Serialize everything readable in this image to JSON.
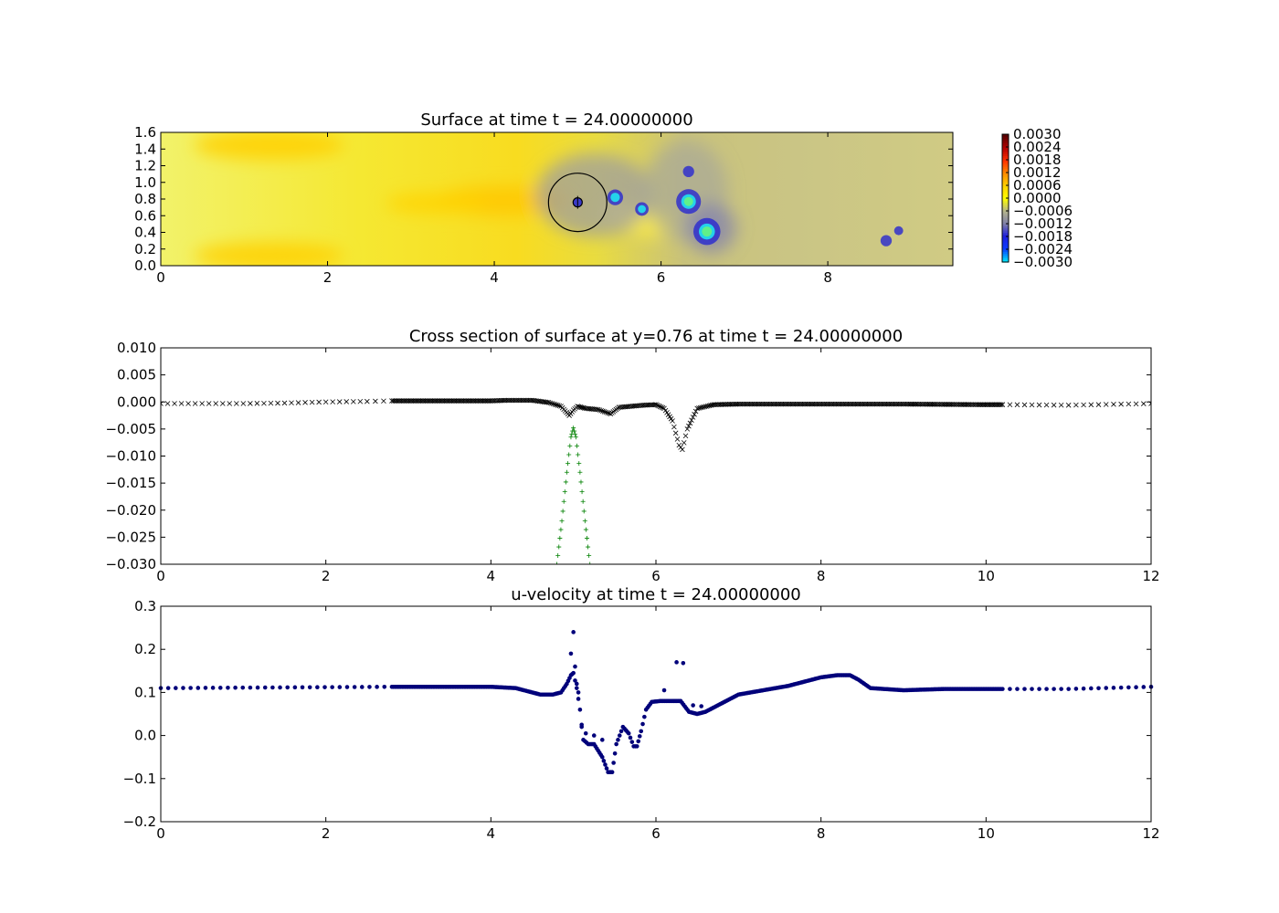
{
  "chart_data": [
    {
      "type": "heatmap",
      "title": "Surface at time t =    24.00000000",
      "xlim": [
        0,
        9.5
      ],
      "ylim": [
        0,
        1.6
      ],
      "xticks": [
        "0",
        "2",
        "4",
        "6",
        "8"
      ],
      "yticks": [
        "0.0",
        "0.2",
        "0.4",
        "0.6",
        "0.8",
        "1.0",
        "1.2",
        "1.4",
        "1.6"
      ],
      "colorbar": {
        "range": [
          -0.003,
          0.003
        ],
        "ticks": [
          "0.0030",
          "0.0024",
          "0.0018",
          "0.0012",
          "0.0006",
          "0.0000",
          "−0.0006",
          "−0.0012",
          "−0.0018",
          "−0.0024",
          "−0.0030"
        ],
        "colors": [
          "#00e5ff",
          "#0a3cff",
          "#1e1edc",
          "#8080a8",
          "#b4b48c",
          "#ffff00",
          "#ffd200",
          "#ff8c00",
          "#ff3200",
          "#b40000",
          "#5a0000"
        ]
      },
      "circle": {
        "cx": 5.0,
        "cy": 0.76,
        "r": 0.35
      },
      "inner_circle": {
        "cx": 5.0,
        "cy": 0.76,
        "r": 0.055
      },
      "depressions": [
        {
          "x": 5.45,
          "y": 0.82,
          "r": 0.07,
          "v": -0.0024
        },
        {
          "x": 5.77,
          "y": 0.68,
          "r": 0.06,
          "v": -0.0024
        },
        {
          "x": 6.33,
          "y": 0.77,
          "r": 0.11,
          "v": -0.003
        },
        {
          "x": 6.33,
          "y": 1.13,
          "r": 0.05,
          "v": -0.0022
        },
        {
          "x": 6.55,
          "y": 0.41,
          "r": 0.12,
          "v": -0.003
        },
        {
          "x": 8.7,
          "y": 0.3,
          "r": 0.05,
          "v": -0.0018
        },
        {
          "x": 8.85,
          "y": 0.42,
          "r": 0.04,
          "v": -0.0016
        }
      ]
    },
    {
      "type": "scatter",
      "title": "Cross section of surface at y=0.76 at time t =    24.00000000",
      "xlim": [
        0,
        12
      ],
      "ylim": [
        -0.03,
        0.01
      ],
      "xticks": [
        "0",
        "2",
        "4",
        "6",
        "8",
        "10",
        "12"
      ],
      "yticks": [
        "0.010",
        "0.005",
        "0.000",
        "−0.005",
        "−0.010",
        "−0.015",
        "−0.020",
        "−0.025",
        "−0.030"
      ],
      "series": [
        {
          "marker": "x",
          "color": "#000000",
          "x": [
            0,
            0.5,
            1.0,
            1.5,
            2.0,
            2.5,
            2.8,
            3.5,
            4.0,
            4.2,
            4.5,
            4.7,
            4.85,
            4.95,
            5.0,
            5.05,
            5.15,
            5.3,
            5.45,
            5.55,
            5.7,
            5.85,
            6.0,
            6.1,
            6.2,
            6.28,
            6.32,
            6.38,
            6.5,
            6.7,
            7.0,
            8.0,
            9.0,
            10.0,
            10.2,
            11.0,
            12.0
          ],
          "y": [
            -0.0003,
            -0.0003,
            -0.0003,
            -0.0002,
            0.0,
            0.0001,
            0.0002,
            0.0002,
            0.0002,
            0.0003,
            0.0003,
            -0.0001,
            -0.0008,
            -0.0025,
            -0.0015,
            -0.0008,
            -0.0012,
            -0.0014,
            -0.0022,
            -0.001,
            -0.0008,
            -0.0006,
            -0.0005,
            -0.0012,
            -0.0035,
            -0.008,
            -0.0088,
            -0.005,
            -0.0012,
            -0.0005,
            -0.0004,
            -0.0004,
            -0.0004,
            -0.0005,
            -0.0005,
            -0.0006,
            -0.0003
          ]
        },
        {
          "marker": "+",
          "color": "#008000",
          "x": [
            4.8,
            4.86,
            4.92,
            4.97,
            5.0,
            5.03,
            5.08,
            5.14,
            5.2
          ],
          "y": [
            -0.03,
            -0.022,
            -0.013,
            -0.0065,
            -0.0048,
            -0.0065,
            -0.013,
            -0.022,
            -0.03
          ]
        }
      ]
    },
    {
      "type": "scatter",
      "title": "u-velocity at time t =    24.00000000",
      "xlim": [
        0,
        12
      ],
      "ylim": [
        -0.2,
        0.3
      ],
      "xticks": [
        "0",
        "2",
        "4",
        "6",
        "8",
        "10",
        "12"
      ],
      "yticks": [
        "0.3",
        "0.2",
        "0.1",
        "0.0",
        "−0.1",
        "−0.2"
      ],
      "series": [
        {
          "marker": "o",
          "color": "#00007a",
          "x": [
            0,
            2.8,
            4.0,
            4.3,
            4.5,
            4.6,
            4.75,
            4.85,
            4.92,
            4.97,
            5.0,
            5.04,
            5.08,
            5.12,
            5.18,
            5.25,
            5.35,
            5.42,
            5.47,
            5.52,
            5.6,
            5.67,
            5.73,
            5.77,
            5.82,
            5.88,
            5.95,
            6.05,
            6.2,
            6.3,
            6.4,
            6.5,
            6.6,
            6.8,
            7.0,
            7.3,
            7.6,
            8.0,
            8.2,
            8.35,
            8.45,
            8.6,
            9.0,
            9.5,
            10.2,
            11.0,
            12.0
          ],
          "y": [
            0.11,
            0.113,
            0.113,
            0.11,
            0.1,
            0.095,
            0.095,
            0.1,
            0.12,
            0.14,
            0.145,
            0.11,
            0.06,
            -0.01,
            -0.02,
            -0.02,
            -0.05,
            -0.085,
            -0.085,
            -0.02,
            0.02,
            0.005,
            -0.025,
            -0.025,
            0.01,
            0.06,
            0.078,
            0.08,
            0.08,
            0.08,
            0.055,
            0.05,
            0.055,
            0.075,
            0.095,
            0.105,
            0.115,
            0.135,
            0.14,
            0.14,
            0.13,
            0.11,
            0.105,
            0.108,
            0.108,
            0.108,
            0.113
          ]
        },
        {
          "marker": "o",
          "color": "#00007a",
          "x": [
            4.97,
            5.0,
            5.02,
            5.04,
            5.06,
            5.1,
            5.15,
            5.25,
            5.35,
            6.1,
            6.25,
            6.33,
            6.45,
            6.55
          ],
          "y": [
            0.19,
            0.24,
            0.16,
            0.12,
            0.1,
            0.02,
            0.005,
            0.0,
            -0.01,
            0.105,
            0.17,
            0.168,
            0.07,
            0.068
          ]
        }
      ]
    }
  ]
}
